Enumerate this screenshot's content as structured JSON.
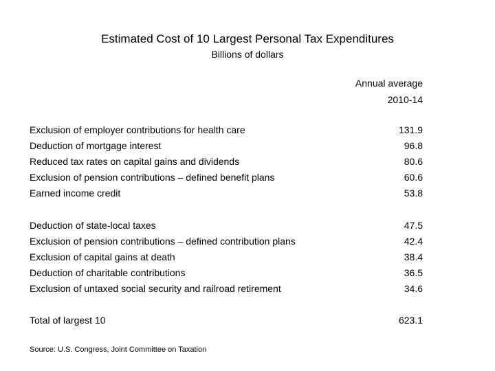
{
  "header": {
    "title": "Estimated Cost of 10 Largest Personal Tax Expenditures",
    "subtitle": "Billions of dollars"
  },
  "column": {
    "header_line1": "Annual average",
    "header_line2": "2010-14"
  },
  "group1": [
    {
      "label": "Exclusion of employer contributions for health care",
      "value": "131.9"
    },
    {
      "label": "Deduction of mortgage interest",
      "value": "96.8"
    },
    {
      "label": "Reduced tax rates on capital gains and dividends",
      "value": "80.6"
    },
    {
      "label": "Exclusion of pension contributions – defined benefit plans",
      "value": "60.6"
    },
    {
      "label": "Earned income credit",
      "value": "53.8"
    }
  ],
  "group2": [
    {
      "label": "Deduction of state-local taxes",
      "value": "47.5"
    },
    {
      "label": "Exclusion of pension contributions – defined contribution plans",
      "value": "42.4"
    },
    {
      "label": "Exclusion of capital gains at death",
      "value": "38.4"
    },
    {
      "label": "Deduction of charitable contributions",
      "value": "36.5"
    },
    {
      "label": "Exclusion of untaxed social security and railroad retirement",
      "value": "34.6"
    }
  ],
  "total": {
    "label": "Total of largest 10",
    "value": "623.1"
  },
  "source": "Source: U.S. Congress, Joint Committee on Taxation"
}
